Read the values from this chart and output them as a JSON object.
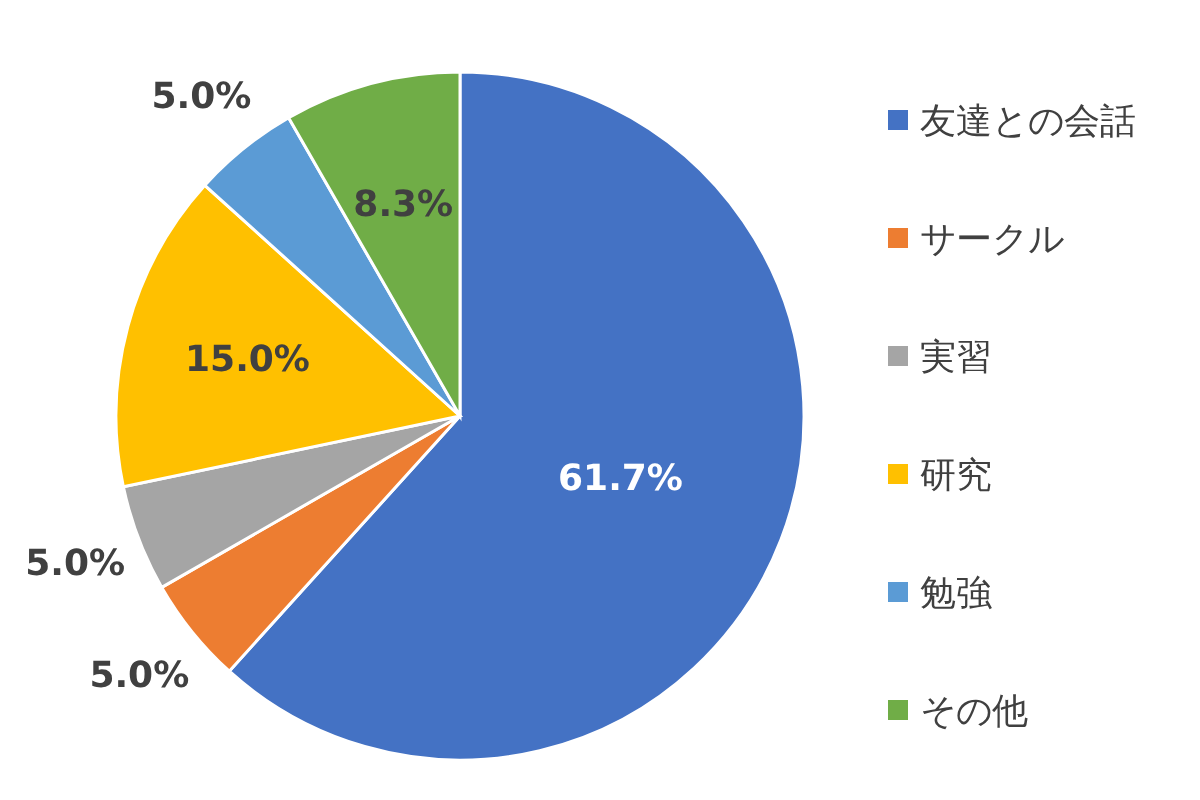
{
  "chart_data": {
    "type": "pie",
    "categories": [
      "友達との会話",
      "サークル",
      "実習",
      "研究",
      "勉強",
      "その他"
    ],
    "values": [
      61.7,
      5.0,
      5.0,
      15.0,
      5.0,
      8.3
    ],
    "value_labels": [
      "61.7%",
      "5.0%",
      "5.0%",
      "15.0%",
      "5.0%",
      "8.3%"
    ],
    "colors": [
      "#4472c4",
      "#ed7d31",
      "#a5a5a5",
      "#ffc000",
      "#5b9bd5",
      "#70ad47"
    ],
    "legend": "right"
  }
}
